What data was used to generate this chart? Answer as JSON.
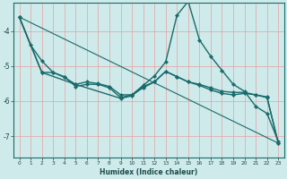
{
  "xlabel": "Humidex (Indice chaleur)",
  "background_color": "#ceeaea",
  "grid_color": "#e8a0a0",
  "line_color": "#1a6b6b",
  "xlim": [
    -0.5,
    23.5
  ],
  "ylim": [
    -7.6,
    -3.2
  ],
  "yticks": [
    -7,
    -6,
    -5,
    -4
  ],
  "yticklabels": [
    "-7",
    "-6",
    "-5",
    "-4"
  ],
  "xticks": [
    0,
    1,
    2,
    3,
    4,
    5,
    6,
    7,
    8,
    9,
    10,
    11,
    12,
    13,
    14,
    15,
    16,
    17,
    18,
    19,
    20,
    21,
    22,
    23
  ],
  "series": [
    {
      "x": [
        0,
        1,
        2,
        3,
        4,
        5,
        6,
        7,
        8,
        9,
        10,
        11,
        12,
        13,
        14,
        15,
        16,
        17,
        18,
        19,
        20,
        21,
        22,
        23
      ],
      "y": [
        -3.6,
        -4.4,
        -4.85,
        -5.18,
        -5.3,
        -5.58,
        -5.52,
        -5.52,
        -5.62,
        -5.9,
        -5.82,
        -5.55,
        -5.28,
        -4.88,
        -3.55,
        -3.15,
        -4.25,
        -4.72,
        -5.12,
        -5.52,
        -5.72,
        -6.15,
        -6.35,
        -7.15
      ],
      "marker": "D",
      "markersize": 2.0,
      "linewidth": 1.0
    },
    {
      "x": [
        0,
        2,
        3,
        4,
        5,
        6,
        7,
        8,
        9,
        10,
        11,
        12,
        13,
        14,
        15,
        16,
        17,
        18,
        19,
        20,
        21,
        22,
        23
      ],
      "y": [
        -3.6,
        -5.18,
        -5.18,
        -5.32,
        -5.52,
        -5.45,
        -5.5,
        -5.58,
        -5.82,
        -5.82,
        -5.62,
        -5.45,
        -5.15,
        -5.3,
        -5.45,
        -5.52,
        -5.62,
        -5.72,
        -5.75,
        -5.75,
        -5.82,
        -5.88,
        -7.2
      ],
      "marker": "D",
      "markersize": 2.0,
      "linewidth": 1.0
    },
    {
      "x": [
        0,
        2,
        5,
        9,
        10,
        11,
        12,
        13,
        14,
        15,
        16,
        17,
        18,
        19,
        20,
        21,
        22,
        23
      ],
      "y": [
        -3.6,
        -5.18,
        -5.52,
        -5.92,
        -5.85,
        -5.58,
        -5.45,
        -5.15,
        -5.3,
        -5.45,
        -5.55,
        -5.68,
        -5.78,
        -5.82,
        -5.78,
        -5.82,
        -5.9,
        -7.2
      ],
      "marker": "D",
      "markersize": 2.0,
      "linewidth": 1.0
    },
    {
      "x": [
        0,
        23
      ],
      "y": [
        -3.6,
        -7.2
      ],
      "marker": null,
      "markersize": 0,
      "linewidth": 0.8
    }
  ]
}
